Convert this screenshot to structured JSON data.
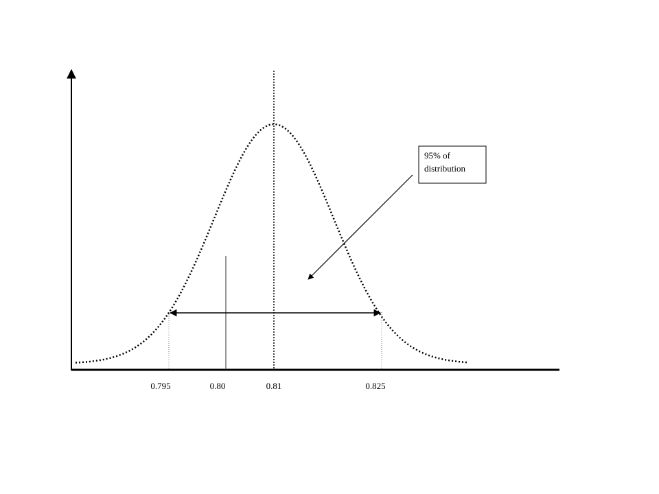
{
  "axis_labels": [
    "0.795",
    "0.80",
    "0.81",
    "0.825"
  ],
  "annotation": {
    "lines": [
      "95% of",
      "distribution"
    ]
  }
}
